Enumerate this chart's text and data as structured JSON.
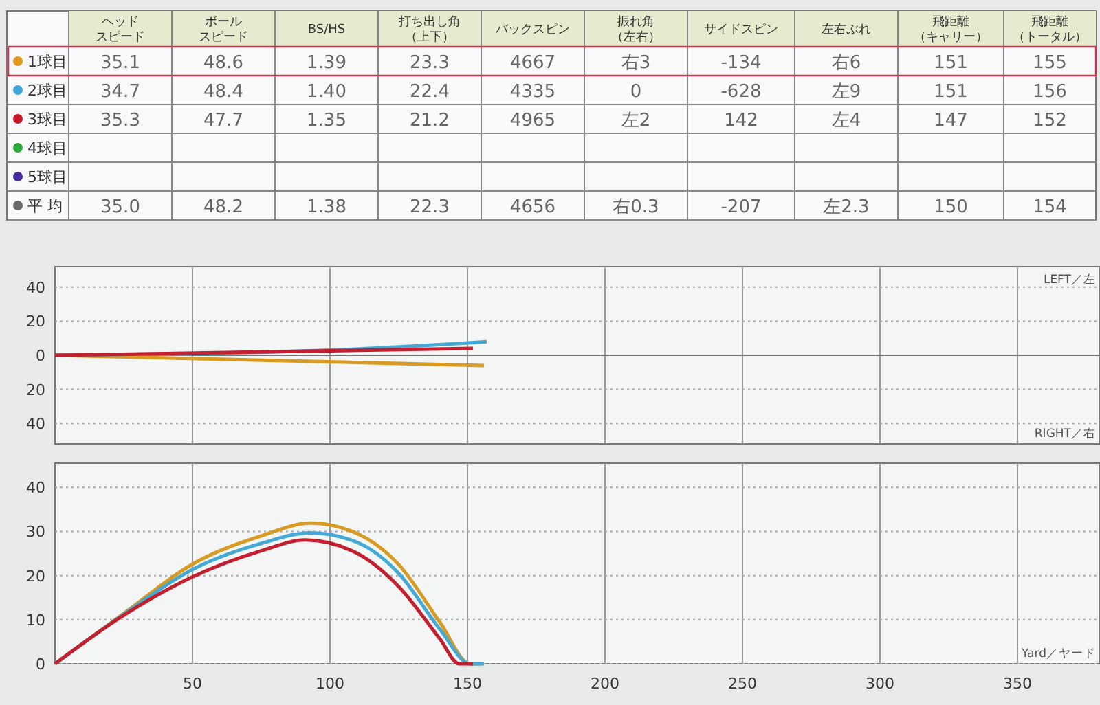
{
  "chart_data": [
    {
      "type": "heatmap",
      "categories": [
        "ヘッドスピード",
        "ボールスピード",
        "BS/HS",
        "打ち出し角（上下）",
        "バックスピン",
        "振れ角（左右）",
        "サイドスピン",
        "左右ぶれ",
        "飛距離（キャリー）",
        "飛距離（トータル）"
      ],
      "y_categories": [
        "1球目",
        "2球目",
        "3球目",
        "4球目",
        "5球目",
        "平 均"
      ],
      "cells": [
        [
          null,
          null,
          null,
          null,
          null,
          null,
          null,
          null,
          null,
          null
        ],
        [
          null,
          null,
          null,
          null,
          null,
          null,
          null,
          null,
          null,
          null
        ],
        [
          null,
          null,
          null,
          null,
          null,
          null,
          null,
          null,
          null,
          null
        ],
        [
          null,
          null,
          null,
          null,
          null,
          null,
          null,
          null,
          null,
          null
        ],
        [
          null,
          null,
          null,
          null,
          null,
          null,
          null,
          null,
          null,
          null
        ],
        [
          null,
          null,
          null,
          null,
          null,
          null,
          null,
          null,
          null,
          null
        ]
      ],
      "cell_labels": [
        [
          "35.1",
          "48.6",
          "1.39",
          "23.3",
          "4667",
          "右3",
          "-134",
          "右6",
          "151",
          "155"
        ],
        [
          "34.7",
          "48.4",
          "1.40",
          "22.4",
          "4335",
          "0",
          "-628",
          "左9",
          "151",
          "156"
        ],
        [
          "35.3",
          "47.7",
          "1.35",
          "21.2",
          "4965",
          "左2",
          "142",
          "左4",
          "147",
          "152"
        ],
        [
          null,
          null,
          null,
          null,
          null,
          null,
          null,
          null,
          null,
          null
        ],
        [
          null,
          null,
          null,
          null,
          null,
          null,
          null,
          null,
          null,
          null
        ],
        [
          "35.0",
          "48.2",
          "1.38",
          "22.3",
          "4656",
          "右0.3",
          "-207",
          "左2.3",
          "150",
          "154"
        ]
      ]
    },
    {
      "type": "line",
      "xlim": [
        0,
        380
      ],
      "xticks": [
        50,
        100,
        150,
        200,
        250,
        300,
        350
      ],
      "ylim": [
        -52,
        52
      ],
      "yticks": [
        {
          "value": -40,
          "label": "40"
        },
        {
          "value": -20,
          "label": "20"
        },
        0,
        20,
        40
      ],
      "tick_labels": "y",
      "grid": true,
      "annotations": [
        "LEFT／左",
        "RIGHT／右"
      ],
      "series": [
        {
          "color": "#d99a22",
          "x": [
            0,
            156
          ],
          "values": [
            0,
            -6
          ]
        },
        {
          "color": "#45a9d6",
          "x": [
            0,
            100,
            157
          ],
          "values": [
            0,
            3,
            8
          ]
        },
        {
          "color": "#c41f2e",
          "x": [
            0,
            152
          ],
          "values": [
            0,
            4
          ]
        }
      ]
    },
    {
      "type": "line",
      "xlim": [
        0,
        380
      ],
      "xticks": [
        50,
        100,
        150,
        200,
        250,
        300,
        350
      ],
      "ylim": [
        0,
        45.5
      ],
      "yticks": [
        0,
        10,
        20,
        30,
        40
      ],
      "grid": true,
      "annotations": [
        "Yard／ヤード"
      ],
      "series": [
        {
          "color": "#d99a22",
          "x": [
            0,
            25,
            50,
            75,
            93,
            110,
            125,
            140,
            151,
            155
          ],
          "values": [
            0,
            11.4,
            22.6,
            29,
            31.9,
            29.5,
            22.5,
            9.4,
            0,
            0
          ]
        },
        {
          "color": "#45a9d6",
          "x": [
            0,
            25,
            50,
            75,
            93,
            110,
            125,
            140,
            151,
            156
          ],
          "values": [
            0,
            11.2,
            21.4,
            27.3,
            29.7,
            27.5,
            20.5,
            7.8,
            0,
            0
          ]
        },
        {
          "color": "#c41f2e",
          "x": [
            0,
            25,
            50,
            75,
            91,
            110,
            125,
            140,
            147,
            152
          ],
          "values": [
            0,
            11,
            19.7,
            25.6,
            28.1,
            25,
            17.5,
            5.6,
            0,
            0
          ]
        }
      ]
    }
  ]
}
